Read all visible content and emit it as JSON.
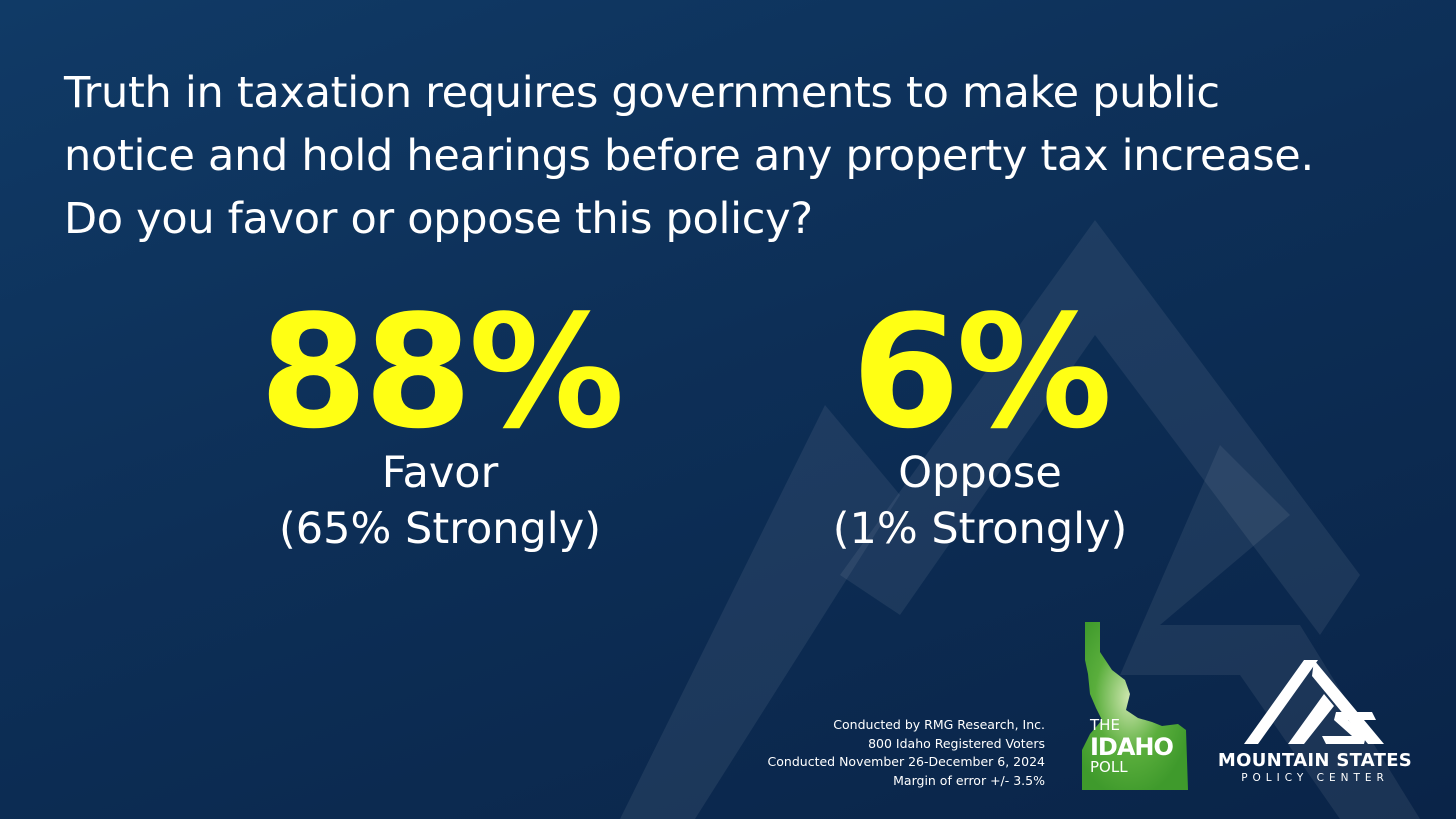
{
  "question": {
    "line1": "Truth in taxation requires governments to make public",
    "line2": "notice and hold hearings before any property tax increase.",
    "line3": "Do you favor or oppose this policy?"
  },
  "favor": {
    "value": "88%",
    "label": "Favor",
    "sub": "(65% Strongly)"
  },
  "oppose": {
    "value": "6%",
    "label": "Oppose",
    "sub": "(1% Strongly)"
  },
  "methodology": {
    "lines": [
      "Conducted by RMG Research, Inc.",
      "800 Idaho Registered Voters",
      "Conducted November 26-December 6, 2024",
      "Margin of error +/- 3.5%"
    ]
  },
  "idaho_poll_logo": {
    "the": "THE",
    "idaho": "IDAHO",
    "poll": "POLL",
    "icon": "idaho-state-icon"
  },
  "mountain_states_logo": {
    "name": "MOUNTAIN STATES",
    "subtitle": "POLICY CENTER",
    "icon": "mountain-logo-icon"
  },
  "colors": {
    "background": "#0d2f57",
    "highlight": "#ffff14",
    "idaho_green": "#3f9a2c",
    "text": "#ffffff"
  }
}
